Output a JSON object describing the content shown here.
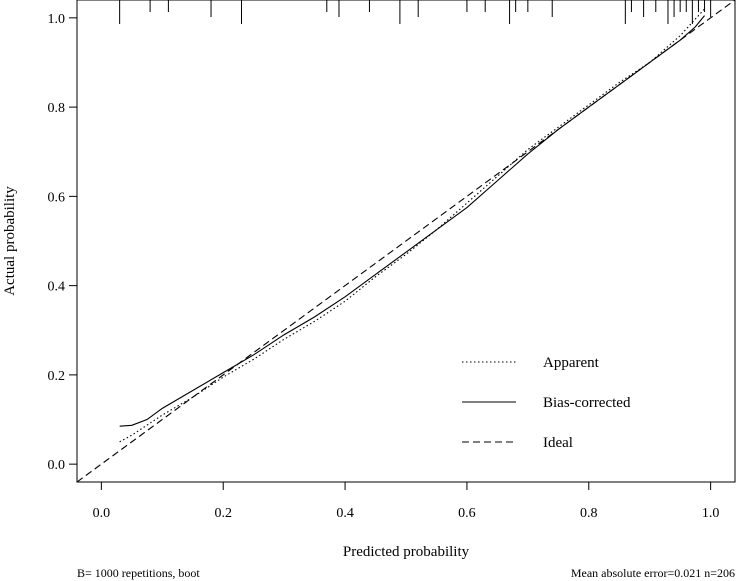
{
  "chart_data": {
    "type": "line",
    "title": "",
    "xlabel": "Predicted probability",
    "ylabel": "Actual probability",
    "xlim": [
      -0.04,
      1.04
    ],
    "ylim": [
      -0.04,
      1.04
    ],
    "x_ticks": [
      {
        "value": 0.0,
        "label": "0.0"
      },
      {
        "value": 0.2,
        "label": "0.2"
      },
      {
        "value": 0.4,
        "label": "0.4"
      },
      {
        "value": 0.6,
        "label": "0.6"
      },
      {
        "value": 0.8,
        "label": "0.8"
      },
      {
        "value": 1.0,
        "label": "1.0"
      }
    ],
    "y_ticks": [
      {
        "value": 0.0,
        "label": "0.0"
      },
      {
        "value": 0.2,
        "label": "0.2"
      },
      {
        "value": 0.4,
        "label": "0.4"
      },
      {
        "value": 0.6,
        "label": "0.6"
      },
      {
        "value": 0.8,
        "label": "0.8"
      },
      {
        "value": 1.0,
        "label": "1.0"
      }
    ],
    "grid": false,
    "legend_position": "bottom-right",
    "series": [
      {
        "name": "Apparent",
        "style": "dotted",
        "points": [
          [
            0.03,
            0.05
          ],
          [
            0.05,
            0.065
          ],
          [
            0.1,
            0.11
          ],
          [
            0.15,
            0.15
          ],
          [
            0.2,
            0.195
          ],
          [
            0.25,
            0.235
          ],
          [
            0.3,
            0.28
          ],
          [
            0.35,
            0.32
          ],
          [
            0.4,
            0.365
          ],
          [
            0.45,
            0.42
          ],
          [
            0.5,
            0.47
          ],
          [
            0.55,
            0.525
          ],
          [
            0.6,
            0.585
          ],
          [
            0.65,
            0.645
          ],
          [
            0.7,
            0.705
          ],
          [
            0.75,
            0.755
          ],
          [
            0.8,
            0.805
          ],
          [
            0.85,
            0.855
          ],
          [
            0.9,
            0.9
          ],
          [
            0.95,
            0.96
          ],
          [
            0.99,
            1.02
          ]
        ]
      },
      {
        "name": "Bias-corrected",
        "style": "solid",
        "points": [
          [
            0.03,
            0.085
          ],
          [
            0.05,
            0.087
          ],
          [
            0.075,
            0.1
          ],
          [
            0.1,
            0.125
          ],
          [
            0.15,
            0.165
          ],
          [
            0.2,
            0.205
          ],
          [
            0.25,
            0.245
          ],
          [
            0.3,
            0.29
          ],
          [
            0.35,
            0.33
          ],
          [
            0.4,
            0.375
          ],
          [
            0.45,
            0.425
          ],
          [
            0.5,
            0.475
          ],
          [
            0.55,
            0.525
          ],
          [
            0.6,
            0.575
          ],
          [
            0.65,
            0.635
          ],
          [
            0.7,
            0.695
          ],
          [
            0.75,
            0.75
          ],
          [
            0.8,
            0.8
          ],
          [
            0.85,
            0.85
          ],
          [
            0.9,
            0.9
          ],
          [
            0.95,
            0.95
          ],
          [
            0.975,
            0.98
          ],
          [
            0.99,
            1.005
          ]
        ]
      },
      {
        "name": "Ideal",
        "style": "dashed",
        "points": [
          [
            -0.04,
            -0.04
          ],
          [
            1.04,
            1.04
          ]
        ]
      }
    ],
    "rug_x": [
      0.03,
      0.08,
      0.11,
      0.18,
      0.23,
      0.37,
      0.39,
      0.44,
      0.49,
      0.52,
      0.6,
      0.63,
      0.67,
      0.68,
      0.7,
      0.74,
      0.86,
      0.87,
      0.89,
      0.91,
      0.93,
      0.94,
      0.95,
      0.96,
      0.97,
      0.98,
      0.99,
      1.0
    ],
    "footnote_left": "B= 1000 repetitions, boot",
    "footnote_right": "Mean absolute error=0.021 n=206"
  }
}
